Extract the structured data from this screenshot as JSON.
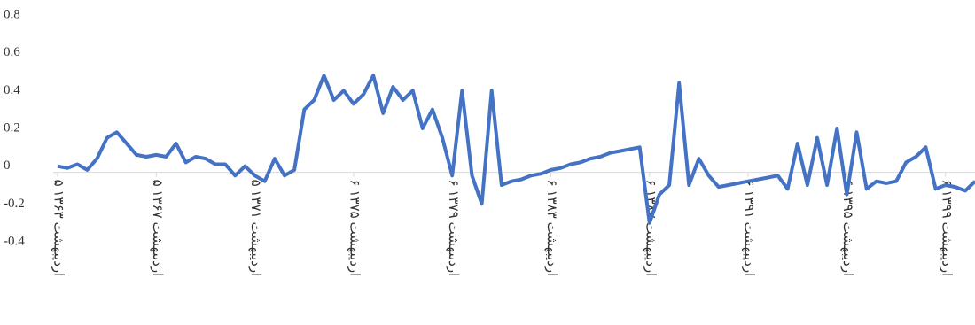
{
  "chart_data": {
    "type": "line",
    "categories": [
      "۵ اردیبهشت ۱۳۶۳",
      null,
      null,
      null,
      null,
      null,
      null,
      null,
      null,
      null,
      "۵ اردیبهشت ۱۳۶۷",
      null,
      null,
      null,
      null,
      null,
      null,
      null,
      null,
      null,
      "۵ اردیبهشت ۱۳۷۱",
      null,
      null,
      null,
      null,
      null,
      null,
      null,
      null,
      null,
      "۶ اردیبهشت ۱۳۷۵",
      null,
      null,
      null,
      null,
      null,
      null,
      null,
      null,
      null,
      "۶ اردیبهشت ۱۳۷۹",
      null,
      null,
      null,
      null,
      null,
      null,
      null,
      null,
      null,
      "۶ اردیبهشت ۱۳۸۳",
      null,
      null,
      null,
      null,
      null,
      null,
      null,
      null,
      null,
      "۶ اردیبهشت ۱۳۸۷",
      null,
      null,
      null,
      null,
      null,
      null,
      null,
      null,
      null,
      "۶ اردیبهشت ۱۳۹۱",
      null,
      null,
      null,
      null,
      null,
      null,
      null,
      null,
      null,
      "۶ اردیبهشت ۱۳۹۵",
      null,
      null,
      null,
      null,
      null,
      null,
      null,
      null,
      null,
      "۶ اردیبهشت ۱۳۹۹",
      null,
      null,
      null
    ],
    "series": [
      {
        "name": "series",
        "color": "#4472c4",
        "values": [
          0.0,
          -0.01,
          0.01,
          -0.02,
          0.04,
          0.15,
          0.18,
          0.12,
          0.06,
          0.05,
          0.06,
          0.05,
          0.12,
          0.02,
          0.05,
          0.04,
          0.01,
          0.01,
          -0.05,
          0.0,
          -0.05,
          -0.08,
          0.04,
          -0.05,
          -0.02,
          0.3,
          0.35,
          0.48,
          0.35,
          0.4,
          0.33,
          0.38,
          0.48,
          0.28,
          0.42,
          0.35,
          0.4,
          0.2,
          0.3,
          0.15,
          -0.05,
          0.4,
          -0.05,
          -0.2,
          0.4,
          -0.1,
          -0.08,
          -0.07,
          -0.05,
          -0.04,
          -0.02,
          -0.01,
          0.01,
          0.02,
          0.04,
          0.05,
          0.07,
          0.08,
          0.09,
          0.1,
          -0.3,
          -0.15,
          -0.1,
          0.44,
          -0.1,
          0.04,
          -0.05,
          -0.11,
          -0.1,
          -0.09,
          -0.08,
          -0.07,
          -0.06,
          -0.05,
          -0.12,
          0.12,
          -0.1,
          0.15,
          -0.1,
          0.2,
          -0.15,
          0.18,
          -0.12,
          -0.08,
          -0.09,
          -0.08,
          0.02,
          0.05,
          0.1,
          -0.12,
          -0.1,
          -0.11,
          -0.13,
          -0.08
        ]
      }
    ],
    "ylim": [
      -0.4,
      0.8
    ],
    "yticks": [
      -0.4,
      -0.2,
      0,
      0.2,
      0.4,
      0.6,
      0.8
    ]
  }
}
